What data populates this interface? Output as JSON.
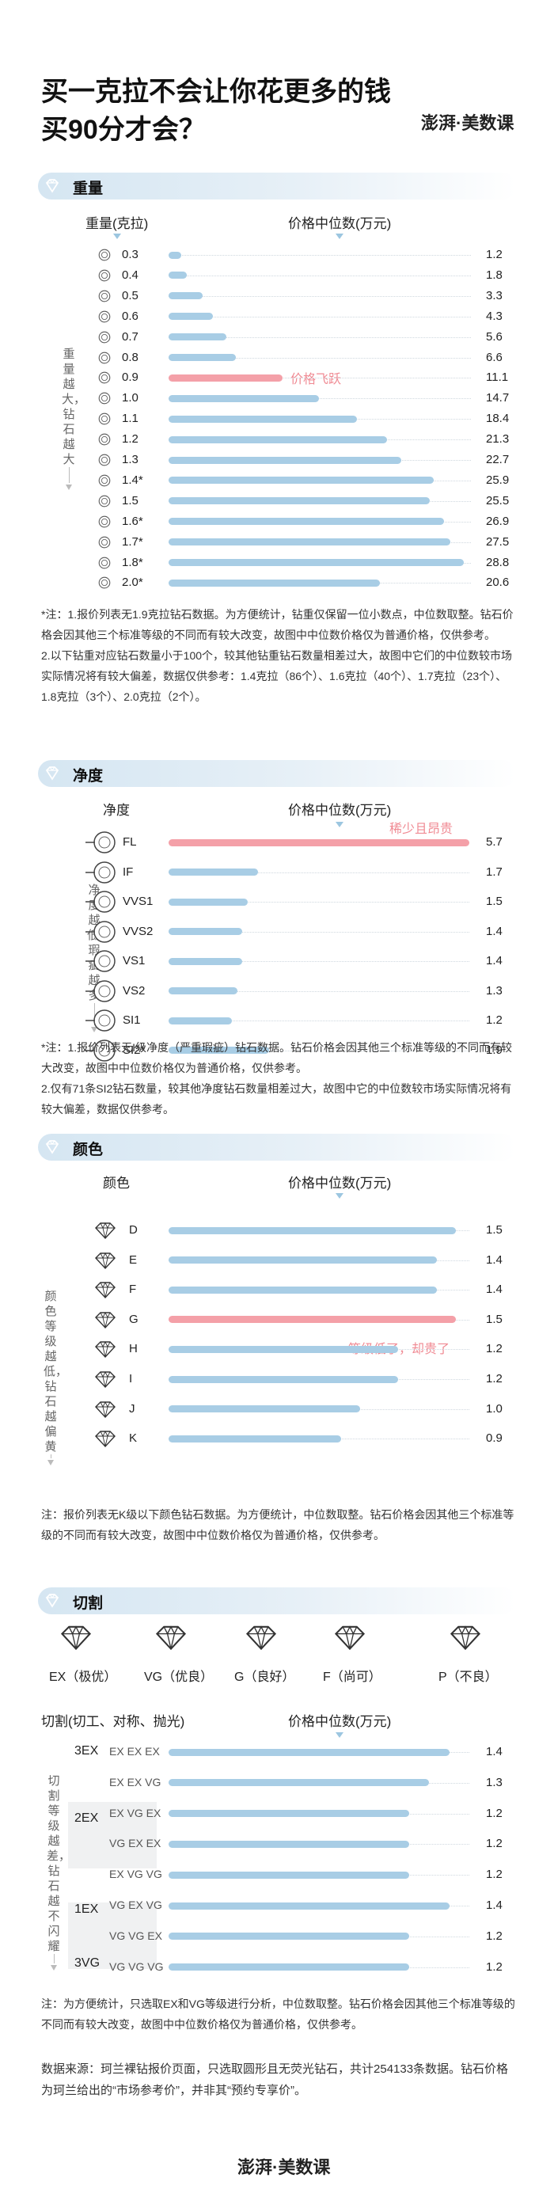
{
  "title_lines": [
    "买一克拉不会让你花更多的钱",
    "买90分才会？"
  ],
  "logo": "澎湃·美数课",
  "colors": {
    "bar": "#a8cde5",
    "highlight": "#f4a0a8",
    "annotation": "#f08a93",
    "section_bg": "#d5e6f2"
  },
  "weight": {
    "section_title": "重量",
    "col_left": "重量(克拉)",
    "col_right": "价格中位数(万元)",
    "side_label": "重量越大，钻石越大",
    "annotation": "价格飞跃",
    "note": "*注：1.报价列表无1.9克拉钻石数据。为方便统计，钻重仅保留一位小数点，中位数取整。钻石价格会因其他三个标准等级的不同而有较大改变，故图中中位数价格仅为普通价格，仅供参考。\n2.以下钻重对应钻石数量小于100个，较其他钻重钻石数量相差过大，故图中它们的中位数较市场实际情况将有较大偏差，数据仅供参考：1.4克拉（86个）、1.6克拉（40个）、1.7克拉（23个）、1.8克拉（3个）、2.0克拉（2个）。"
  },
  "clarity": {
    "section_title": "净度",
    "col_left": "净度",
    "col_right": "价格中位数(万元)",
    "side_label": "净度越低，瑕疵越多",
    "annotation": "稀少且昂贵",
    "note": "*注：1.报价列表无I级净度（严重瑕疵）钻石数据。钻石价格会因其他三个标准等级的不同而有较大改变，故图中中位数价格仅为普通价格，仅供参考。\n2.仅有71条SI2钻石数量，较其他净度钻石数量相差过大，故图中它的中位数较市场实际情况将有较大偏差，数据仅供参考。"
  },
  "color": {
    "section_title": "颜色",
    "col_left": "颜色",
    "col_right": "价格中位数(万元)",
    "side_label": "颜色等级越低，钻石越偏黄",
    "annotation": "等级低了，却贵了",
    "note": "注：报价列表无K级以下颜色钻石数据。为方便统计，中位数取整。钻石价格会因其他三个标准等级的不同而有较大改变，故图中中位数价格仅为普通价格，仅供参考。"
  },
  "cut": {
    "section_title": "切割",
    "grades": [
      "EX（极优）",
      "VG（优良）",
      "G（良好）",
      "F（尚可）",
      "P（不良）"
    ],
    "col_left": "切割(切工、对称、抛光)",
    "col_right": "价格中位数(万元)",
    "side_label": "切割等级越差，钻石越不闪耀",
    "groups": [
      "3EX",
      "2EX",
      "1EX",
      "3VG"
    ],
    "note": "注：为方便统计，只选取EX和VG等级进行分析，中位数取整。钻石价格会因其他三个标准等级的不同而有较大改变，故图中中位数价格仅为普通价格，仅供参考。"
  },
  "source": "数据来源：珂兰裸钻报价页面，只选取圆形且无荧光钻石，共计254133条数据。钻石价格为珂兰给出的“市场参考价”，并非其“预约专享价”。",
  "chart_data": [
    {
      "type": "bar",
      "title": "重量",
      "xlabel": "重量(克拉)",
      "ylabel": "价格中位数(万元)",
      "categories": [
        "0.3",
        "0.4",
        "0.5",
        "0.6",
        "0.7",
        "0.8",
        "0.9",
        "1.0",
        "1.1",
        "1.2",
        "1.3",
        "1.4*",
        "1.5",
        "1.6*",
        "1.7*",
        "1.8*",
        "2.0*"
      ],
      "values": [
        1.2,
        1.8,
        3.3,
        4.3,
        5.6,
        6.6,
        11.1,
        14.7,
        18.4,
        21.3,
        22.7,
        25.9,
        25.5,
        26.9,
        27.5,
        28.8,
        20.6
      ],
      "highlight": "0.9",
      "xlim": [
        0,
        30
      ]
    },
    {
      "type": "bar",
      "title": "净度",
      "xlabel": "净度",
      "ylabel": "价格中位数(万元)",
      "categories": [
        "FL",
        "IF",
        "VVS1",
        "VVS2",
        "VS1",
        "VS2",
        "SI1",
        "SI2*"
      ],
      "values": [
        5.7,
        1.7,
        1.5,
        1.4,
        1.4,
        1.3,
        1.2,
        1.9
      ],
      "highlight": "FL",
      "xlim": [
        0,
        5.7
      ]
    },
    {
      "type": "bar",
      "title": "颜色",
      "xlabel": "颜色",
      "ylabel": "价格中位数(万元)",
      "categories": [
        "D",
        "E",
        "F",
        "G",
        "H",
        "I",
        "J",
        "K"
      ],
      "values": [
        1.5,
        1.4,
        1.4,
        1.5,
        1.2,
        1.2,
        1.0,
        0.9
      ],
      "highlight": "G",
      "xlim": [
        0,
        1.5
      ]
    },
    {
      "type": "bar",
      "title": "切割",
      "xlabel": "切割(切工、对称、抛光)",
      "ylabel": "价格中位数(万元)",
      "categories": [
        "EX EX EX",
        "EX EX VG",
        "EX VG EX",
        "VG EX EX",
        "EX VG VG",
        "VG EX VG",
        "VG VG EX",
        "VG VG VG"
      ],
      "values": [
        1.4,
        1.3,
        1.2,
        1.2,
        1.2,
        1.4,
        1.2,
        1.2
      ],
      "xlim": [
        0,
        1.5
      ]
    }
  ]
}
